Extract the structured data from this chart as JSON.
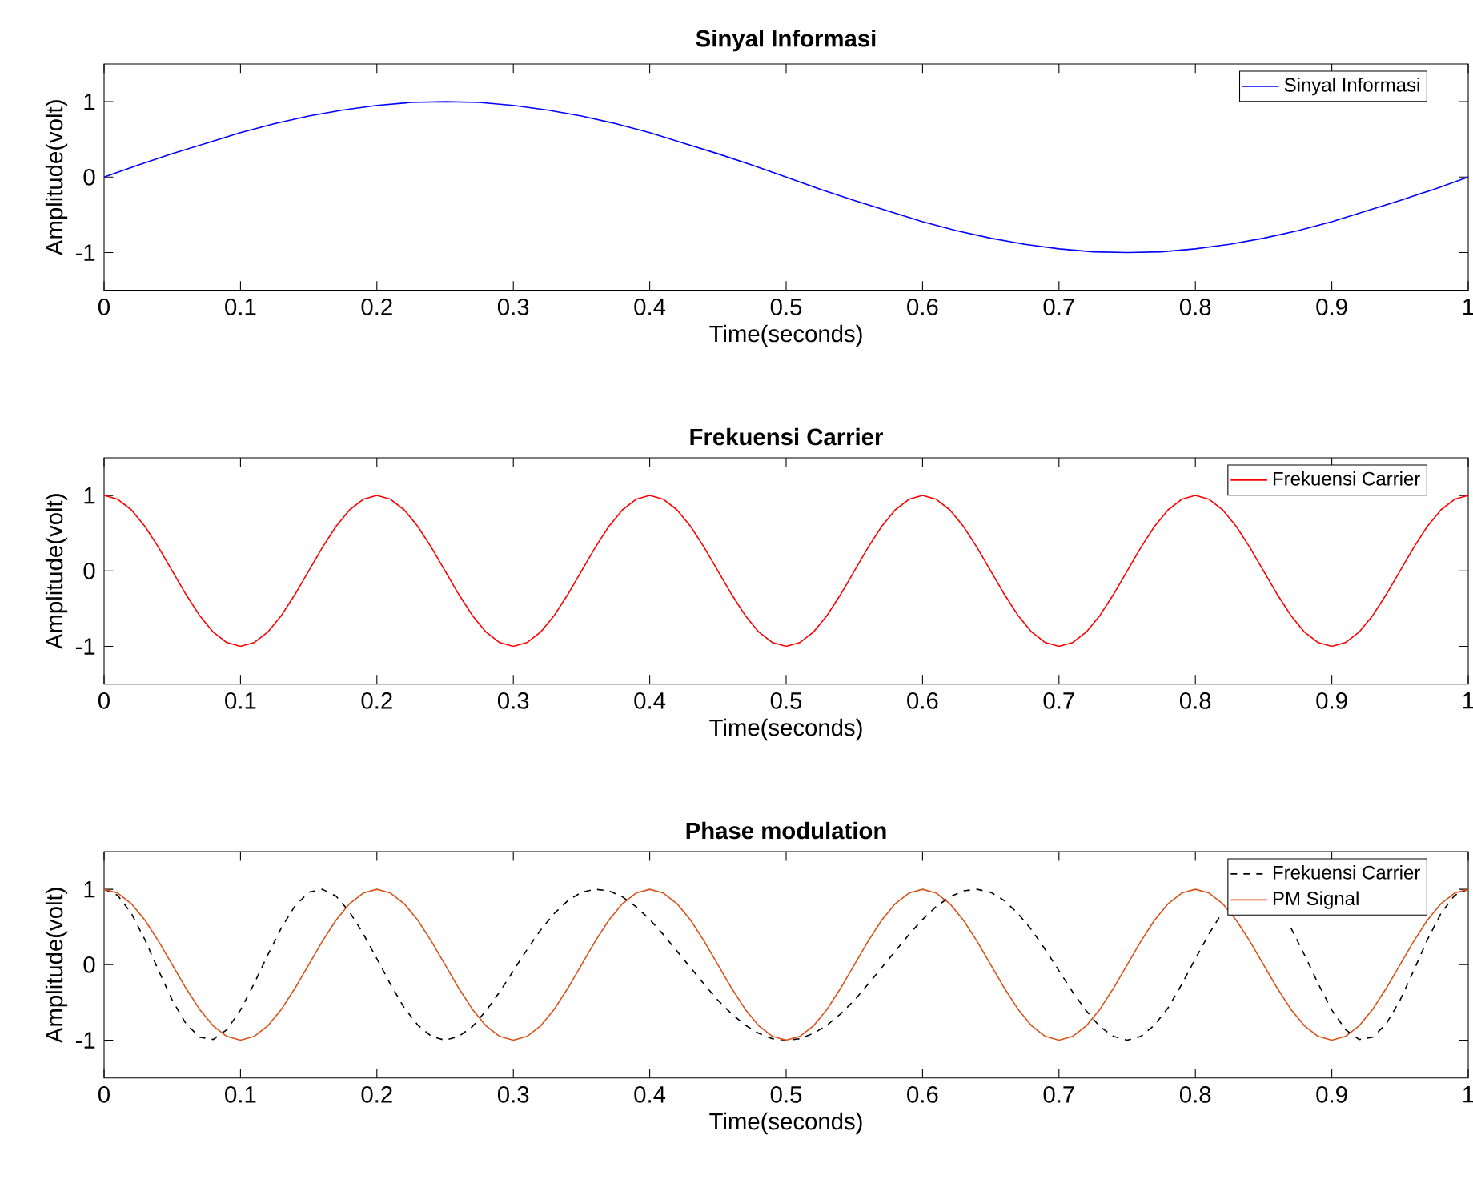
{
  "chart_data": [
    {
      "type": "line",
      "title": "Sinyal Informasi",
      "xlabel": "Time(seconds)",
      "ylabel": "Amplitude(volt)",
      "xlim": [
        0,
        1
      ],
      "ylim": [
        -1.5,
        1.5
      ],
      "xticks": [
        0,
        0.1,
        0.2,
        0.3,
        0.4,
        0.5,
        0.6,
        0.7,
        0.8,
        0.9,
        1
      ],
      "yticks": [
        -1,
        0,
        1
      ],
      "legend": "top right",
      "x": [
        0,
        0.025,
        0.05,
        0.075,
        0.1,
        0.125,
        0.15,
        0.175,
        0.2,
        0.225,
        0.25,
        0.275,
        0.3,
        0.325,
        0.35,
        0.375,
        0.4,
        0.425,
        0.45,
        0.475,
        0.5,
        0.525,
        0.55,
        0.575,
        0.6,
        0.625,
        0.65,
        0.675,
        0.7,
        0.725,
        0.75,
        0.775,
        0.8,
        0.825,
        0.85,
        0.875,
        0.9,
        0.925,
        0.95,
        0.975,
        1
      ],
      "series": [
        {
          "name": "Sinyal Informasi",
          "color": "#0000ff",
          "values": [
            0,
            0.16,
            0.31,
            0.45,
            0.59,
            0.71,
            0.81,
            0.89,
            0.95,
            0.99,
            1,
            0.99,
            0.95,
            0.89,
            0.81,
            0.71,
            0.59,
            0.45,
            0.31,
            0.16,
            0,
            -0.16,
            -0.31,
            -0.45,
            -0.59,
            -0.71,
            -0.81,
            -0.89,
            -0.95,
            -0.99,
            -1,
            -0.99,
            -0.95,
            -0.89,
            -0.81,
            -0.71,
            -0.59,
            -0.45,
            -0.31,
            -0.16,
            0
          ]
        }
      ]
    },
    {
      "type": "line",
      "title": "Frekuensi Carrier",
      "xlabel": "Time(seconds)",
      "ylabel": "Amplitude(volt)",
      "xlim": [
        0,
        1
      ],
      "ylim": [
        -1.5,
        1.5
      ],
      "xticks": [
        0,
        0.1,
        0.2,
        0.3,
        0.4,
        0.5,
        0.6,
        0.7,
        0.8,
        0.9,
        1
      ],
      "yticks": [
        -1,
        0,
        1
      ],
      "legend": "top right",
      "x": [
        0,
        0.01,
        0.02,
        0.03,
        0.04,
        0.05,
        0.06,
        0.07,
        0.08,
        0.09,
        0.1,
        0.11,
        0.12,
        0.13,
        0.14,
        0.15,
        0.16,
        0.17,
        0.18,
        0.19,
        0.2,
        0.21,
        0.22,
        0.23,
        0.24,
        0.25,
        0.26,
        0.27,
        0.28,
        0.29,
        0.3,
        0.31,
        0.32,
        0.33,
        0.34,
        0.35,
        0.36,
        0.37,
        0.38,
        0.39,
        0.4,
        0.41,
        0.42,
        0.43,
        0.44,
        0.45,
        0.46,
        0.47,
        0.48,
        0.49,
        0.5,
        0.51,
        0.52,
        0.53,
        0.54,
        0.55,
        0.56,
        0.57,
        0.58,
        0.59,
        0.6,
        0.61,
        0.62,
        0.63,
        0.64,
        0.65,
        0.66,
        0.67,
        0.68,
        0.69,
        0.7,
        0.71,
        0.72,
        0.73,
        0.74,
        0.75,
        0.76,
        0.77,
        0.78,
        0.79,
        0.8,
        0.81,
        0.82,
        0.83,
        0.84,
        0.85,
        0.86,
        0.87,
        0.88,
        0.89,
        0.9,
        0.91,
        0.92,
        0.93,
        0.94,
        0.95,
        0.96,
        0.97,
        0.98,
        0.99,
        1
      ],
      "series": [
        {
          "name": "Frekuensi Carrier",
          "color": "#ff0000",
          "values": [
            1,
            0.95,
            0.81,
            0.59,
            0.31,
            0,
            -0.31,
            -0.59,
            -0.81,
            -0.95,
            -1,
            -0.95,
            -0.81,
            -0.59,
            -0.31,
            0,
            0.31,
            0.59,
            0.81,
            0.95,
            1,
            0.95,
            0.81,
            0.59,
            0.31,
            0,
            -0.31,
            -0.59,
            -0.81,
            -0.95,
            -1,
            -0.95,
            -0.81,
            -0.59,
            -0.31,
            0,
            0.31,
            0.59,
            0.81,
            0.95,
            1,
            0.95,
            0.81,
            0.59,
            0.31,
            0,
            -0.31,
            -0.59,
            -0.81,
            -0.95,
            -1,
            -0.95,
            -0.81,
            -0.59,
            -0.31,
            0,
            0.31,
            0.59,
            0.81,
            0.95,
            1,
            0.95,
            0.81,
            0.59,
            0.31,
            0,
            -0.31,
            -0.59,
            -0.81,
            -0.95,
            -1,
            -0.95,
            -0.81,
            -0.59,
            -0.31,
            0,
            0.31,
            0.59,
            0.81,
            0.95,
            1,
            0.95,
            0.81,
            0.59,
            0.31,
            0,
            -0.31,
            -0.59,
            -0.81,
            -0.95,
            -1,
            -0.95,
            -0.81,
            -0.59,
            -0.31,
            0,
            0.31,
            0.59,
            0.81,
            0.95,
            1
          ]
        }
      ]
    },
    {
      "type": "line",
      "title": "Phase modulation",
      "xlabel": "Time(seconds)",
      "ylabel": "Amplitude(volt)",
      "xlim": [
        0,
        1
      ],
      "ylim": [
        -1.5,
        1.5
      ],
      "xticks": [
        0,
        0.1,
        0.2,
        0.3,
        0.4,
        0.5,
        0.6,
        0.7,
        0.8,
        0.9,
        1
      ],
      "yticks": [
        -1,
        0,
        1
      ],
      "legend": "top right",
      "x": [
        0,
        0.01,
        0.02,
        0.03,
        0.04,
        0.05,
        0.06,
        0.07,
        0.08,
        0.09,
        0.1,
        0.11,
        0.12,
        0.13,
        0.14,
        0.15,
        0.16,
        0.17,
        0.18,
        0.19,
        0.2,
        0.21,
        0.22,
        0.23,
        0.24,
        0.25,
        0.26,
        0.27,
        0.28,
        0.29,
        0.3,
        0.31,
        0.32,
        0.33,
        0.34,
        0.35,
        0.36,
        0.37,
        0.38,
        0.39,
        0.4,
        0.41,
        0.42,
        0.43,
        0.44,
        0.45,
        0.46,
        0.47,
        0.48,
        0.49,
        0.5,
        0.51,
        0.52,
        0.53,
        0.54,
        0.55,
        0.56,
        0.57,
        0.58,
        0.59,
        0.6,
        0.61,
        0.62,
        0.63,
        0.64,
        0.65,
        0.66,
        0.67,
        0.68,
        0.69,
        0.7,
        0.71,
        0.72,
        0.73,
        0.74,
        0.75,
        0.76,
        0.77,
        0.78,
        0.79,
        0.8,
        0.81,
        0.82,
        0.83,
        0.84,
        0.85,
        0.86,
        0.87,
        0.88,
        0.89,
        0.9,
        0.91,
        0.92,
        0.93,
        0.94,
        0.95,
        0.96,
        0.97,
        0.98,
        0.99,
        1
      ],
      "series": [
        {
          "name": "Frekuensi Carrier",
          "color": "#000000",
          "line_style": "dashed",
          "values": [
            1,
            0.92,
            0.68,
            0.33,
            -0.08,
            -0.47,
            -0.78,
            -0.96,
            -0.99,
            -0.86,
            -0.6,
            -0.25,
            0.13,
            0.49,
            0.78,
            0.96,
            1,
            0.91,
            0.7,
            0.41,
            0.08,
            -0.26,
            -0.57,
            -0.8,
            -0.95,
            -1,
            -0.95,
            -0.82,
            -0.61,
            -0.36,
            -0.08,
            0.2,
            0.46,
            0.68,
            0.85,
            0.96,
            1,
            0.98,
            0.9,
            0.77,
            0.6,
            0.4,
            0.18,
            -0.04,
            -0.26,
            -0.47,
            -0.65,
            -0.8,
            -0.91,
            -0.98,
            -1,
            -0.98,
            -0.91,
            -0.8,
            -0.65,
            -0.47,
            -0.26,
            -0.04,
            0.18,
            0.4,
            0.6,
            0.77,
            0.9,
            0.98,
            1,
            0.96,
            0.85,
            0.68,
            0.46,
            0.2,
            -0.08,
            -0.36,
            -0.61,
            -0.82,
            -0.95,
            -1,
            -0.95,
            -0.8,
            -0.57,
            -0.26,
            0.08,
            0.41,
            0.7,
            null,
            null,
            null,
            null,
            0.49,
            0.13,
            -0.25,
            -0.6,
            -0.86,
            -0.99,
            -0.96,
            -0.78,
            -0.47,
            -0.08,
            0.33,
            0.68,
            0.92,
            1
          ]
        },
        {
          "name": "PM Signal",
          "color": "#d95319",
          "line_style": "solid",
          "values": [
            1,
            0.95,
            0.81,
            0.59,
            0.31,
            0,
            -0.31,
            -0.59,
            -0.81,
            -0.95,
            -1,
            -0.95,
            -0.81,
            -0.59,
            -0.31,
            0,
            0.31,
            0.59,
            0.81,
            0.95,
            1,
            0.95,
            0.81,
            0.59,
            0.31,
            0,
            -0.31,
            -0.59,
            -0.81,
            -0.95,
            -1,
            -0.95,
            -0.81,
            -0.59,
            -0.31,
            0,
            0.31,
            0.59,
            0.81,
            0.95,
            1,
            0.95,
            0.81,
            0.59,
            0.31,
            0,
            -0.31,
            -0.59,
            -0.81,
            -0.95,
            -1,
            -0.95,
            -0.81,
            -0.59,
            -0.31,
            0,
            0.31,
            0.59,
            0.81,
            0.95,
            1,
            0.95,
            0.81,
            0.59,
            0.31,
            0,
            -0.31,
            -0.59,
            -0.81,
            -0.95,
            -1,
            -0.95,
            -0.81,
            -0.59,
            -0.31,
            0,
            0.31,
            0.59,
            0.81,
            0.95,
            1,
            0.95,
            0.81,
            0.59,
            0.31,
            0,
            -0.31,
            -0.59,
            -0.81,
            -0.95,
            -1,
            -0.95,
            -0.81,
            -0.59,
            -0.31,
            0,
            0.31,
            0.59,
            0.81,
            0.95,
            1
          ]
        }
      ]
    }
  ]
}
